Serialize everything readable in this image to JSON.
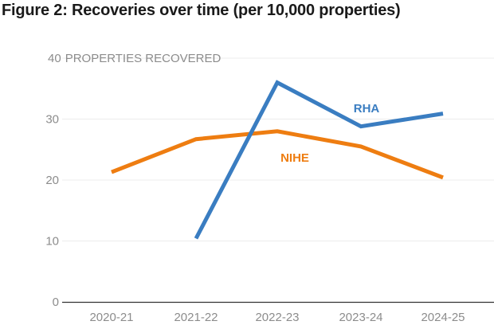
{
  "chart_data": {
    "type": "line",
    "title": "Figure 2: Recoveries over time (per 10,000 properties)",
    "ylabel": "PROPERTIES RECOVERED",
    "categories": [
      "2020-21",
      "2021-22",
      "2022-23",
      "2023-24",
      "2024-25"
    ],
    "ylim": [
      0,
      40
    ],
    "yticks": [
      0,
      10,
      20,
      30,
      40
    ],
    "grid": true,
    "series": [
      {
        "name": "NIHE",
        "color": "#ee7d11",
        "values": [
          21.3,
          26.7,
          28.0,
          25.5,
          20.4
        ]
      },
      {
        "name": "RHA",
        "color": "#3a7dc1",
        "values": [
          null,
          10.4,
          36.0,
          28.8,
          30.9
        ]
      }
    ]
  }
}
